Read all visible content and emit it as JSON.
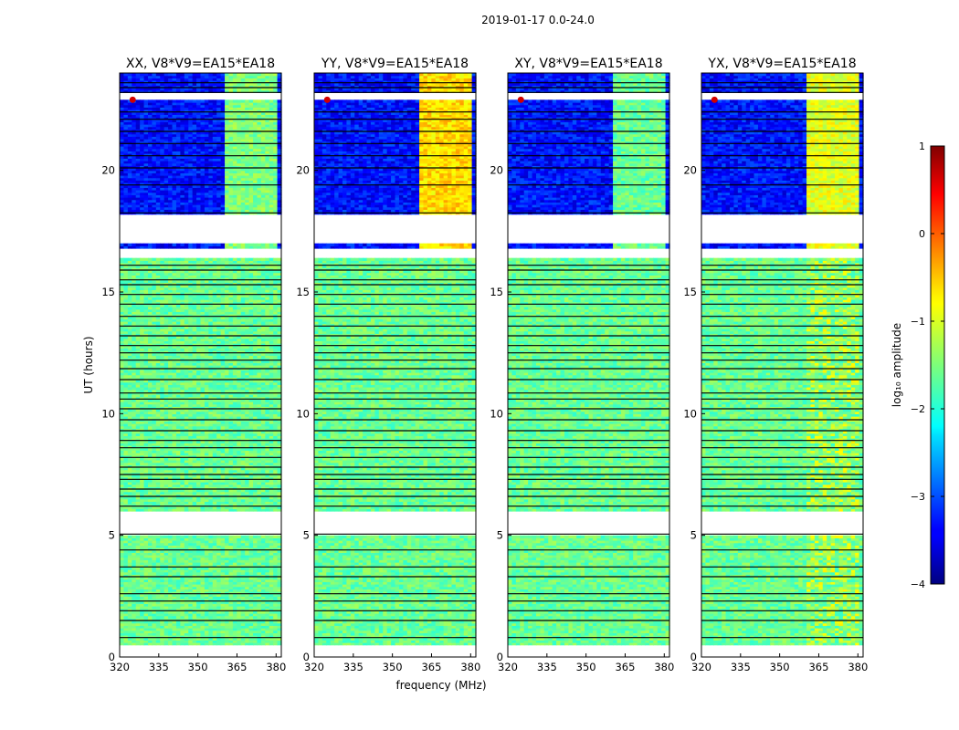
{
  "figure": {
    "suptitle": "2019-01-17 0.0-24.0",
    "xlabel": "frequency (MHz)",
    "ylabel": "UT (hours)"
  },
  "chart_data": {
    "type": "heatmap",
    "title": "2019-01-17 0.0-24.0",
    "xlabel": "frequency (MHz)",
    "ylabel": "UT (hours)",
    "xlim": [
      320,
      382
    ],
    "ylim": [
      0,
      24
    ],
    "xticks": [
      "320",
      "335",
      "350",
      "365",
      "380"
    ],
    "yticks": [
      "0",
      "5",
      "10",
      "15",
      "20"
    ],
    "xtick_values": [
      320,
      335,
      350,
      365,
      380
    ],
    "ytick_values": [
      0,
      5,
      10,
      15,
      20
    ],
    "panels": [
      {
        "title": "XX, V8*V9=EA15*EA18",
        "band_level": -1.5
      },
      {
        "title": "YY, V8*V9=EA15*EA18",
        "band_level": -0.7
      },
      {
        "title": "XY, V8*V9=EA15*EA18",
        "band_level": -1.6
      },
      {
        "title": "YX, V8*V9=EA15*EA18",
        "band_level": -1.0
      }
    ],
    "blank_ut_ranges": [
      [
        0,
        0.5
      ],
      [
        5.0,
        6.0
      ],
      [
        16.4,
        16.8
      ],
      [
        18.2,
        17.0
      ],
      [
        23.2,
        22.9
      ]
    ],
    "day_ut_range": [
      0.5,
      16.4
    ],
    "night_ut_range": [
      16.8,
      24.0
    ],
    "day_level": -1.6,
    "night_level": -3.3,
    "bright_band_mhz": [
      360,
      380
    ],
    "hot_spot": {
      "freq_mhz": 325,
      "ut": 22.9,
      "level": 0.6
    },
    "flag_lines_ut": [
      0.8,
      1.5,
      1.9,
      2.3,
      2.6,
      3.3,
      3.7,
      4.4,
      5.05,
      6.2,
      6.6,
      6.9,
      7.3,
      7.5,
      7.8,
      8.2,
      8.6,
      8.9,
      9.3,
      9.75,
      10.2,
      10.6,
      10.85,
      11.4,
      11.85,
      12.2,
      12.5,
      12.8,
      13.2,
      13.6,
      14.0,
      14.5,
      14.9,
      15.3,
      15.5,
      15.9,
      16.1,
      18.25,
      19.4,
      20.1,
      20.6,
      21.1,
      21.6,
      22.1,
      22.4,
      23.2,
      23.4,
      23.6
    ]
  },
  "colorbar": {
    "label": "log₁₀ amplitude",
    "ticks": [
      "1",
      "0",
      "−1",
      "−2",
      "−3",
      "−4"
    ],
    "tick_values": [
      1,
      0,
      -1,
      -2,
      -3,
      -4
    ],
    "vmin": -4,
    "vmax": 1,
    "colormap": "jet"
  }
}
